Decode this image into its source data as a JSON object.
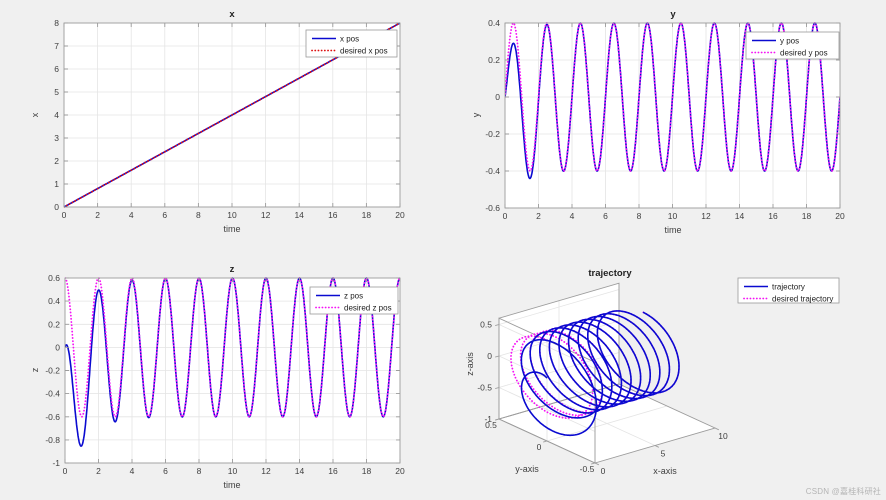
{
  "watermark": "CSDN @嘉桂科研社",
  "colors": {
    "figure_bg": "#f0f0f0",
    "axes_bg": "#ffffff",
    "grid": "#e4e4e4",
    "axis_border": "#9c9c9c",
    "tick_label": "#3f3f3f",
    "title_text": "#222222",
    "blue": "#0a0ad0",
    "red": "#dd1111",
    "magenta": "#f513f5",
    "legend_border": "#999999",
    "watermark_color": "#b4b4b4"
  },
  "chart_data": [
    {
      "id": "x-position",
      "type": "line",
      "title": "x",
      "xlabel": "time",
      "ylabel": "x",
      "xlim": [
        0,
        20
      ],
      "ylim": [
        0,
        8
      ],
      "xticks": [
        0,
        2,
        4,
        6,
        8,
        10,
        12,
        14,
        16,
        18,
        20
      ],
      "yticks": [
        0,
        1,
        2,
        3,
        4,
        5,
        6,
        7,
        8
      ],
      "grid": true,
      "legend": {
        "position": "top-right",
        "entries": [
          "x pos",
          "desired x pos"
        ]
      },
      "series": [
        {
          "name": "x pos",
          "color": "#0a0ad0",
          "style": "solid",
          "gen": [
            {
              "k": "lin",
              "a": 0.4,
              "b": 0
            }
          ]
        },
        {
          "name": "desired x pos",
          "color": "#dd1111",
          "style": "dotted",
          "gen": [
            {
              "k": "lin",
              "a": 0.4,
              "b": 0
            }
          ]
        }
      ]
    },
    {
      "id": "y-position",
      "type": "line",
      "title": "y",
      "xlabel": "time",
      "ylabel": "y",
      "xlim": [
        0,
        20
      ],
      "ylim": [
        -0.6,
        0.4
      ],
      "xticks": [
        0,
        2,
        4,
        6,
        8,
        10,
        12,
        14,
        16,
        18,
        20
      ],
      "yticks": [
        -0.6,
        -0.4,
        -0.2,
        0,
        0.2,
        0.4
      ],
      "grid": true,
      "legend": {
        "position": "top-right",
        "entries": [
          "y pos",
          "desired y pos"
        ]
      },
      "series": [
        {
          "name": "y pos",
          "color": "#0a0ad0",
          "style": "solid",
          "gen": [
            {
              "k": "sin",
              "A": 0.4,
              "T": 2,
              "ph": 0,
              "off": 0
            },
            {
              "k": "texp",
              "c": -0.63,
              "r": 2.11
            }
          ]
        },
        {
          "name": "desired y pos",
          "color": "#f513f5",
          "style": "dotted",
          "gen": [
            {
              "k": "sin",
              "A": 0.4,
              "T": 2,
              "ph": 0,
              "off": 0
            }
          ]
        }
      ]
    },
    {
      "id": "z-position",
      "type": "line",
      "title": "z",
      "xlabel": "time",
      "ylabel": "z",
      "xlim": [
        0,
        20
      ],
      "ylim": [
        -1,
        0.6
      ],
      "xticks": [
        0,
        2,
        4,
        6,
        8,
        10,
        12,
        14,
        16,
        18,
        20
      ],
      "yticks": [
        -1,
        -0.8,
        -0.6,
        -0.4,
        -0.2,
        0,
        0.2,
        0.4,
        0.6
      ],
      "grid": true,
      "legend": {
        "position": "top-right",
        "entries": [
          "z pos",
          "desired z pos"
        ]
      },
      "series": [
        {
          "name": "z pos",
          "color": "#0a0ad0",
          "style": "solid",
          "gen": [
            {
              "k": "sin",
              "A": 0.6,
              "T": 2,
              "ph": -0.5,
              "off": 0
            },
            {
              "k": "exp",
              "c": -0.6,
              "r": 0.875
            }
          ]
        },
        {
          "name": "desired z pos",
          "color": "#f513f5",
          "style": "dotted",
          "gen": [
            {
              "k": "sin",
              "A": 0.6,
              "T": 2,
              "ph": -0.5,
              "off": 0
            }
          ]
        }
      ]
    },
    {
      "id": "trajectory-3d",
      "type": "line3d",
      "title": "trajectory",
      "t_range": [
        0,
        20
      ],
      "axes": {
        "x": {
          "label": "x-axis",
          "lim": [
            0,
            10
          ],
          "ticks": [
            0,
            5,
            10
          ]
        },
        "y": {
          "label": "y-axis",
          "lim": [
            -0.5,
            0.5
          ],
          "ticks": [
            0.5,
            0,
            -0.5
          ]
        },
        "z": {
          "label": "z-axis",
          "lim": [
            -1,
            0.6
          ],
          "ticks": [
            0.5,
            0,
            -0.5,
            -1
          ]
        }
      },
      "grid": true,
      "legend": {
        "position": "top-right",
        "entries": [
          "trajectory",
          "desired trajectory"
        ]
      },
      "series": [
        {
          "name": "trajectory",
          "color": "#0a0ad0",
          "style": "solid",
          "x_gen": [
            {
              "k": "lin",
              "a": 0.4,
              "b": 0
            }
          ],
          "y_gen": [
            {
              "k": "sin",
              "A": 0.4,
              "T": 2,
              "ph": 0,
              "off": 0
            },
            {
              "k": "texp",
              "c": -0.63,
              "r": 2.11
            }
          ],
          "z_gen": [
            {
              "k": "sin",
              "A": 0.6,
              "T": 2,
              "ph": -0.5,
              "off": 0
            },
            {
              "k": "exp",
              "c": -0.6,
              "r": 0.875
            }
          ]
        },
        {
          "name": "desired trajectory",
          "color": "#f513f5",
          "style": "dotted",
          "x_gen": [
            {
              "k": "lin",
              "a": 0.4,
              "b": 0
            }
          ],
          "y_gen": [
            {
              "k": "sin",
              "A": 0.4,
              "T": 2,
              "ph": 0,
              "off": 0
            }
          ],
          "z_gen": [
            {
              "k": "sin",
              "A": 0.6,
              "T": 2,
              "ph": -0.5,
              "off": 0
            }
          ]
        }
      ]
    }
  ]
}
